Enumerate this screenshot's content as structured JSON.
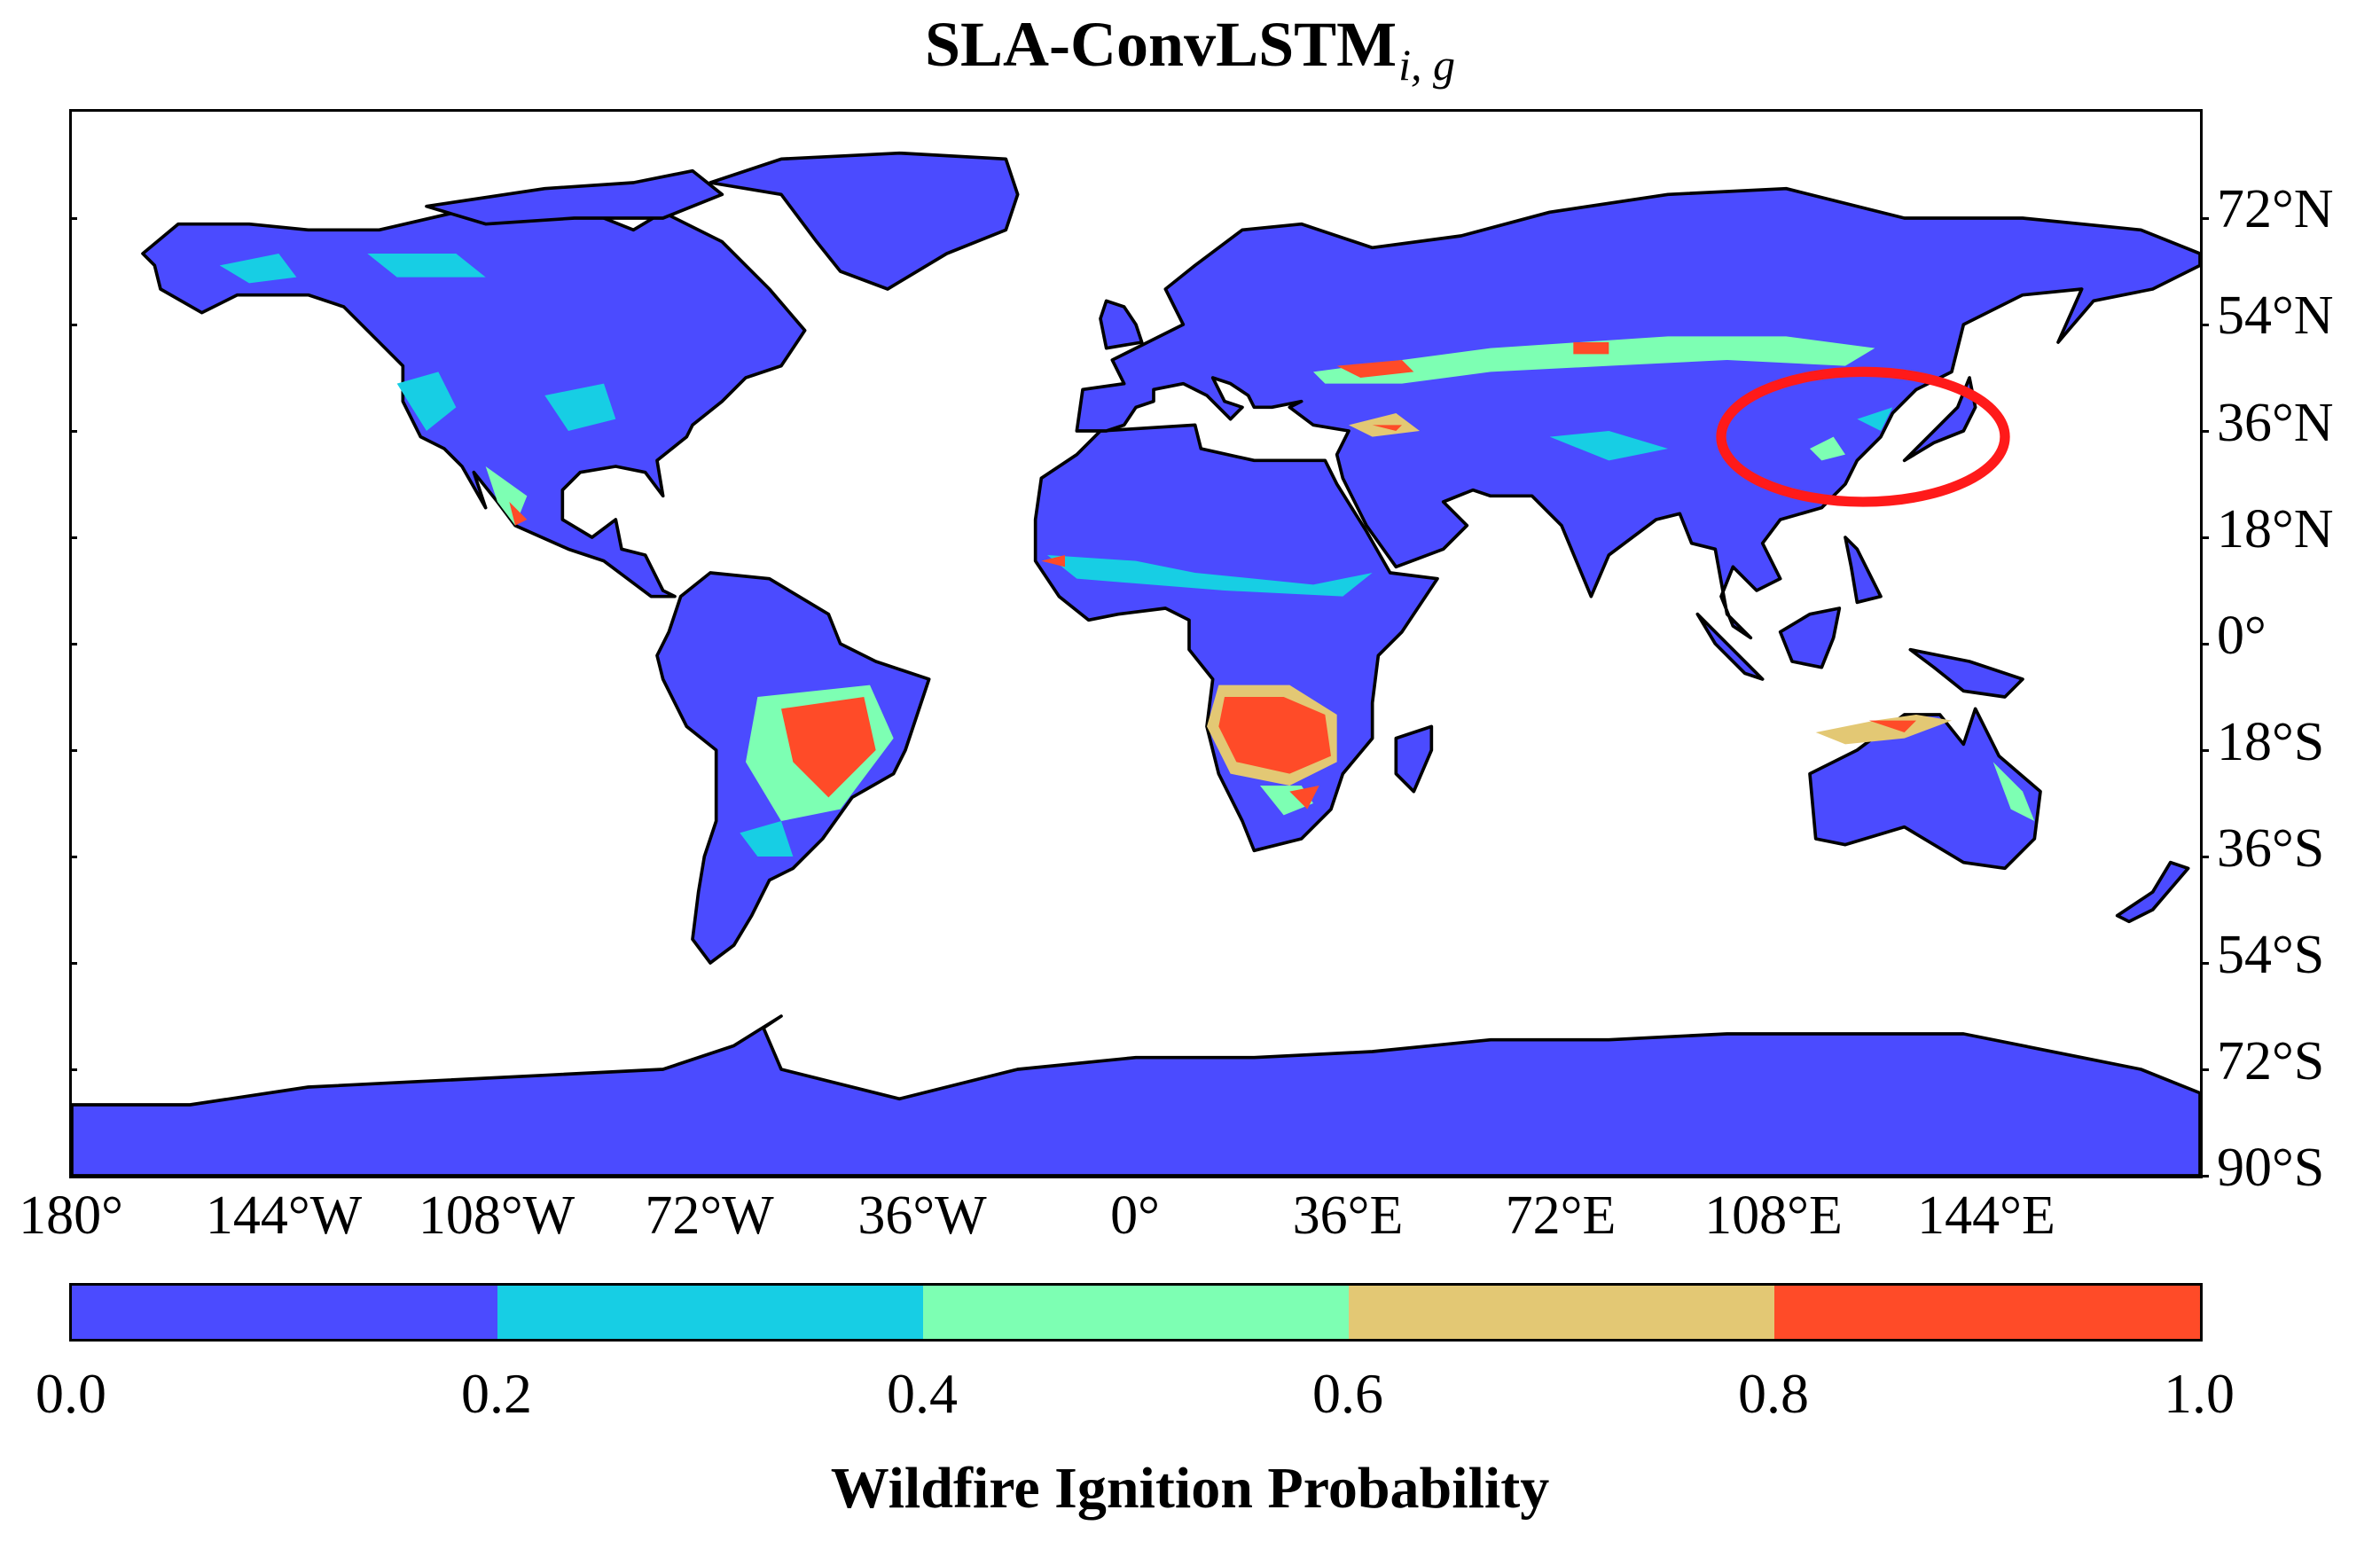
{
  "title_main": "SLA-ConvLSTM",
  "title_sub": "i, g",
  "map": {
    "projection": "equirectangular",
    "lon_range": [
      -180,
      180
    ],
    "lat_range": [
      -90,
      90
    ],
    "ocean_color": "#ffffff",
    "land_base_color": "#4b4bff",
    "border_color": "#000000",
    "highlight": {
      "shape": "ellipse",
      "color": "#ff1a1a",
      "region": "Eastern China / Korea / Japan"
    },
    "lat_labels": [
      "72°N",
      "54°N",
      "36°N",
      "18°N",
      "0°",
      "18°S",
      "36°S",
      "54°S",
      "72°S",
      "90°S"
    ],
    "lon_labels": [
      "180°",
      "144°W",
      "108°W",
      "72°W",
      "36°W",
      "0°",
      "36°E",
      "72°E",
      "108°E",
      "144°E"
    ]
  },
  "colorbar": {
    "colors": [
      "#4b4bff",
      "#17cee4",
      "#7dffb3",
      "#e3c874",
      "#ff4b28"
    ],
    "ticks": [
      "0.0",
      "0.2",
      "0.4",
      "0.6",
      "0.8",
      "1.0"
    ],
    "label": "Wildfire Ignition Probability"
  }
}
